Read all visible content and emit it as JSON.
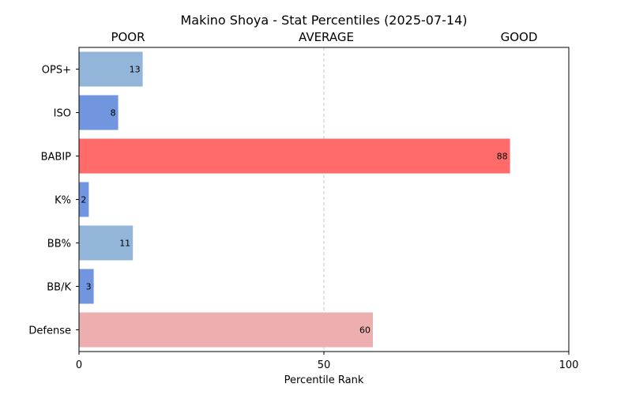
{
  "chart_data": {
    "type": "bar",
    "orientation": "horizontal",
    "title": "Makino Shoya - Stat Percentiles (2025-07-14)",
    "xlabel": "Percentile Rank",
    "ylabel": "",
    "xlim": [
      0,
      100
    ],
    "xticks": [
      "0",
      "50",
      "100"
    ],
    "reference_line": {
      "x": 50,
      "style": "dashed",
      "color": "#c8c8c8"
    },
    "band_labels": [
      "POOR",
      "AVERAGE",
      "GOOD"
    ],
    "categories": [
      "OPS+",
      "ISO",
      "BABIP",
      "K%",
      "BB%",
      "BB/K",
      "Defense"
    ],
    "values": [
      13,
      8,
      88,
      2,
      11,
      3,
      60
    ],
    "bar_colors": [
      "#93b5da",
      "#7195de",
      "#ff6b6b",
      "#7195de",
      "#93b5da",
      "#7195de",
      "#ecaeae"
    ],
    "grid": false,
    "legend": "none"
  }
}
